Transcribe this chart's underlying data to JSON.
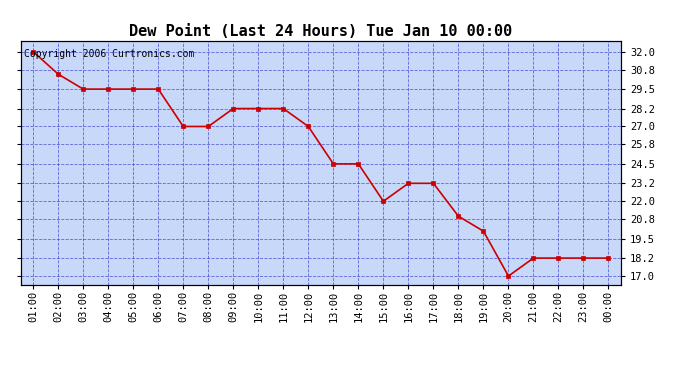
{
  "title": "Dew Point (Last 24 Hours) Tue Jan 10 00:00",
  "copyright": "Copyright 2006 Curtronics.com",
  "x_labels": [
    "01:00",
    "02:00",
    "03:00",
    "04:00",
    "05:00",
    "06:00",
    "07:00",
    "08:00",
    "09:00",
    "10:00",
    "11:00",
    "12:00",
    "13:00",
    "14:00",
    "15:00",
    "16:00",
    "17:00",
    "18:00",
    "19:00",
    "20:00",
    "21:00",
    "22:00",
    "23:00",
    "00:00"
  ],
  "y_values": [
    32.0,
    30.5,
    29.5,
    29.5,
    29.5,
    29.5,
    27.0,
    27.0,
    28.2,
    28.2,
    28.2,
    27.0,
    24.5,
    24.5,
    22.0,
    23.2,
    23.2,
    21.0,
    20.0,
    17.0,
    18.2,
    18.2,
    18.2,
    18.2
  ],
  "ylim_min": 16.4,
  "ylim_max": 32.7,
  "yticks": [
    17.0,
    18.2,
    19.5,
    20.8,
    22.0,
    23.2,
    24.5,
    25.8,
    27.0,
    28.2,
    29.5,
    30.8,
    32.0
  ],
  "line_color": "#cc0000",
  "marker_color": "#cc0000",
  "bg_color": "#c8d8f8",
  "fig_bg_color": "#ffffff",
  "grid_color": "#3333cc",
  "border_color": "#000000",
  "title_color": "#000000",
  "copyright_color": "#000000",
  "title_fontsize": 11,
  "copyright_fontsize": 7,
  "tick_fontsize": 7.5
}
